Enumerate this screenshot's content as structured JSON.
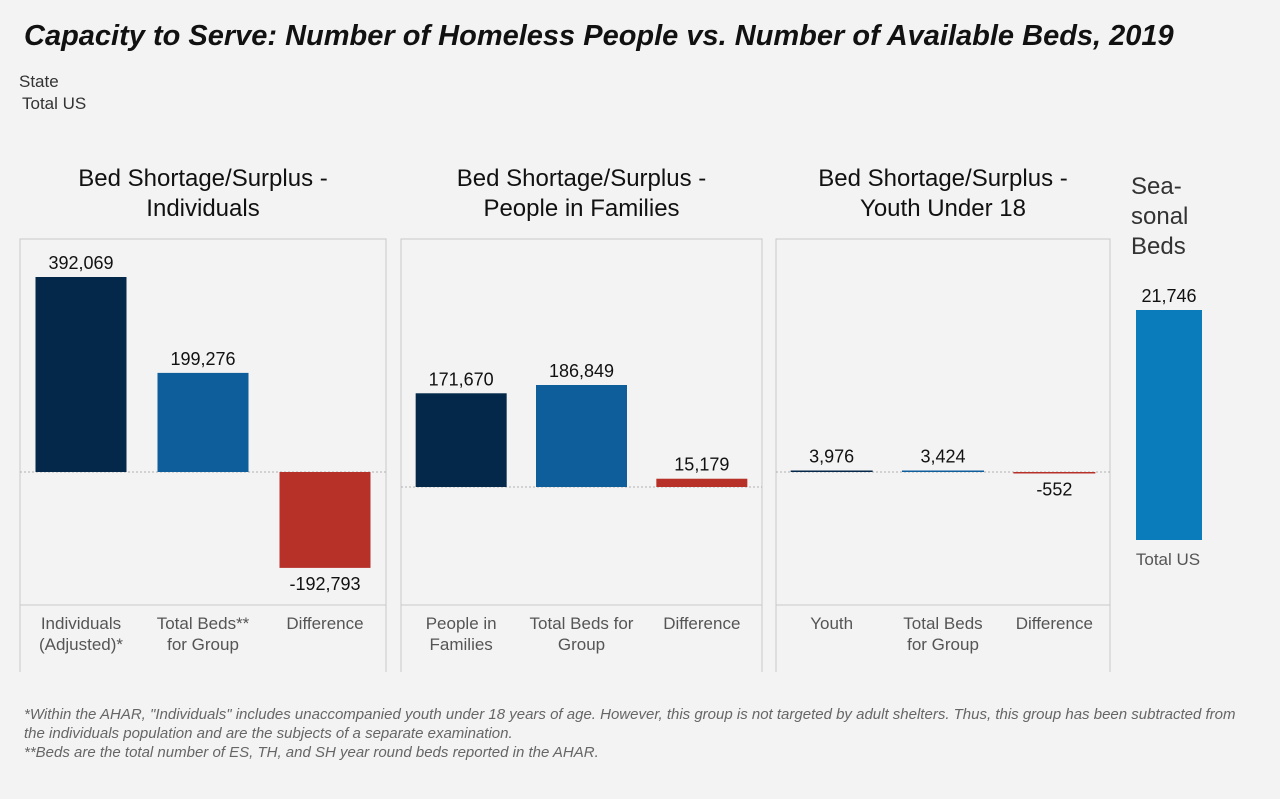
{
  "title": "Capacity to Serve:  Number of Homeless People vs. Number of Available Beds, 2019",
  "filter": {
    "label": "State",
    "value": "Total US"
  },
  "colors": {
    "navy": "#04284a",
    "blue": "#0f5e9c",
    "red": "#b73129",
    "seasonal": "#0a7cbb",
    "panel_border": "#c8c8c8",
    "zero_line": "#b0b0b0"
  },
  "panels": [
    {
      "title_line1": "Bed Shortage/Surplus -",
      "title_line2": "Individuals"
    },
    {
      "title_line1": "Bed Shortage/Surplus -",
      "title_line2": "People in Families"
    },
    {
      "title_line1": "Bed Shortage/Surplus -",
      "title_line2": "Youth Under 18"
    }
  ],
  "seasonal": {
    "title_line1": "Sea-",
    "title_line2": "sonal",
    "title_line3": "Beds"
  },
  "chart_data": [
    {
      "type": "bar",
      "title": "Bed Shortage/Surplus - Individuals",
      "categories": [
        [
          "Individuals",
          "(Adjusted)*"
        ],
        [
          "Total Beds**",
          "for Group"
        ],
        [
          "Difference"
        ]
      ],
      "values": [
        392069,
        199276,
        -192793
      ],
      "labels": [
        "392,069",
        "199,276",
        "-192,793"
      ],
      "colors": [
        "#04284a",
        "#0f5e9c",
        "#b73129"
      ],
      "ylim": [
        -240000,
        420000
      ]
    },
    {
      "type": "bar",
      "title": "Bed Shortage/Surplus - People in Families",
      "categories": [
        [
          "People in",
          "Families"
        ],
        [
          "Total Beds for",
          "Group"
        ],
        [
          "Difference"
        ]
      ],
      "values": [
        171670,
        186849,
        15179
      ],
      "labels": [
        "171,670",
        "186,849",
        "15,179"
      ],
      "colors": [
        "#04284a",
        "#0f5e9c",
        "#b73129"
      ],
      "ylim": [
        -210000,
        250000
      ]
    },
    {
      "type": "bar",
      "title": "Bed Shortage/Surplus - Youth Under 18",
      "categories": [
        [
          "Youth"
        ],
        [
          "Total Beds",
          "for Group"
        ],
        [
          "Difference"
        ]
      ],
      "values": [
        3976,
        3424,
        -552
      ],
      "labels": [
        "3,976",
        "3,424",
        "-552"
      ],
      "colors": [
        "#04284a",
        "#0f5e9c",
        "#b73129"
      ],
      "ylim": [
        -8000,
        20000
      ]
    },
    {
      "type": "bar",
      "title": "Seasonal Beds",
      "categories": [
        [
          "Total US"
        ]
      ],
      "values": [
        21746
      ],
      "labels": [
        "21,746"
      ],
      "colors": [
        "#0a7cbb"
      ]
    }
  ],
  "footnotes": [
    "*Within the AHAR, \"Individuals\" includes unaccompanied youth under 18 years of age.  However, this group is not targeted by adult shelters. Thus, this group has been subtracted from the individuals population and are the subjects of a separate examination.",
    "**Beds are the total number of ES, TH, and SH year round beds reported in the AHAR."
  ]
}
